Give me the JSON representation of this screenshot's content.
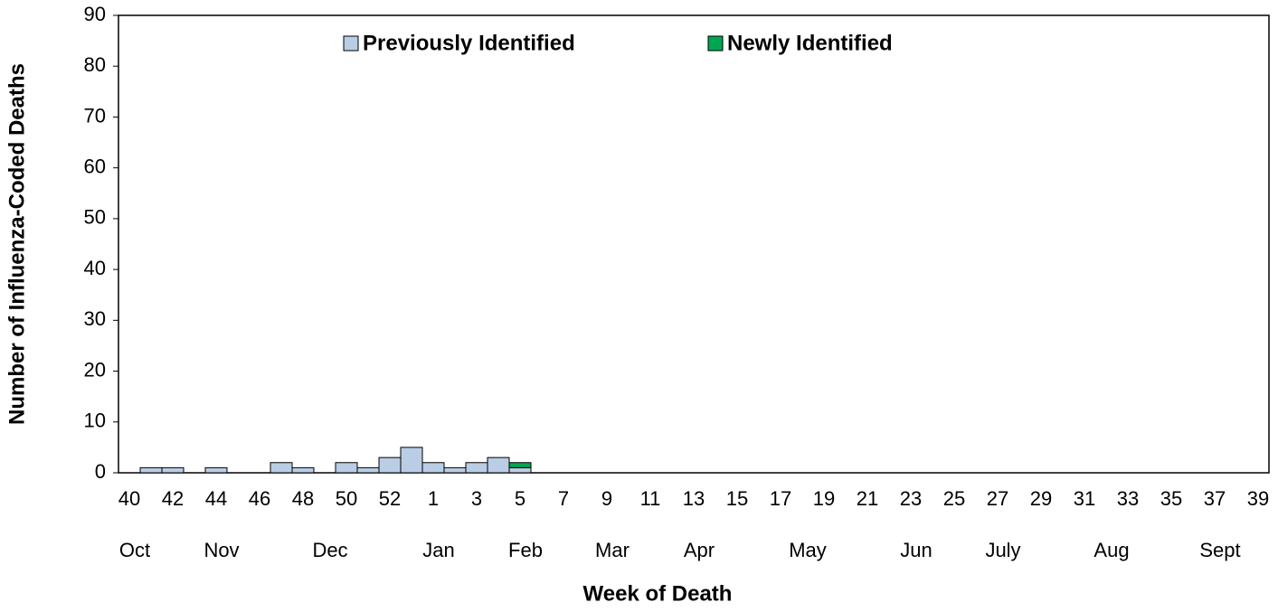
{
  "chart_data": {
    "type": "stacked_bar",
    "xlabel": "Week of Death",
    "ylabel": "Number of Influenza-Coded Deaths",
    "categories": [
      "40",
      null,
      "42",
      null,
      "44",
      null,
      "46",
      null,
      "48",
      null,
      "50",
      null,
      "52",
      null,
      "1",
      null,
      "3",
      null,
      "5",
      null,
      "7",
      null,
      "9",
      null,
      "11",
      null,
      "13",
      null,
      "15",
      null,
      "17",
      null,
      "19",
      null,
      "21",
      null,
      "23",
      null,
      "25",
      null,
      "27",
      null,
      "29",
      null,
      "31",
      null,
      "33",
      null,
      "35",
      null,
      "37",
      null,
      "39"
    ],
    "month_labels": [
      "Oct",
      null,
      null,
      null,
      "Nov",
      null,
      null,
      null,
      null,
      "Dec",
      null,
      null,
      null,
      null,
      "Jan",
      null,
      null,
      null,
      "Feb",
      null,
      null,
      null,
      "Mar",
      null,
      null,
      null,
      "Apr",
      null,
      null,
      null,
      null,
      "May",
      null,
      null,
      null,
      null,
      "Jun",
      null,
      null,
      null,
      "July",
      null,
      null,
      null,
      null,
      "Aug",
      null,
      null,
      null,
      null,
      "Sept",
      null,
      null
    ],
    "series": [
      {
        "name": "Previously Identified",
        "color": "#b9cde5",
        "values": [
          0,
          1,
          1,
          0,
          1,
          0,
          0,
          2,
          1,
          0,
          2,
          1,
          3,
          5,
          2,
          1,
          2,
          3,
          1,
          null,
          null,
          null,
          null,
          null,
          null,
          null,
          null,
          null,
          null,
          null,
          null,
          null,
          null,
          null,
          null,
          null,
          null,
          null,
          null,
          null,
          null,
          null,
          null,
          null,
          null,
          null,
          null,
          null,
          null,
          null,
          null,
          null,
          null
        ]
      },
      {
        "name": "Newly Identified",
        "color": "#00a651",
        "values": [
          0,
          0,
          0,
          0,
          0,
          0,
          0,
          0,
          0,
          0,
          0,
          0,
          0,
          0,
          0,
          0,
          0,
          0,
          1,
          null,
          null,
          null,
          null,
          null,
          null,
          null,
          null,
          null,
          null,
          null,
          null,
          null,
          null,
          null,
          null,
          null,
          null,
          null,
          null,
          null,
          null,
          null,
          null,
          null,
          null,
          null,
          null,
          null,
          null,
          null,
          null,
          null,
          null
        ]
      }
    ],
    "ylim": [
      0,
      90
    ],
    "yticks": [
      0,
      10,
      20,
      30,
      40,
      50,
      60,
      70,
      80,
      90
    ],
    "grid": false
  }
}
